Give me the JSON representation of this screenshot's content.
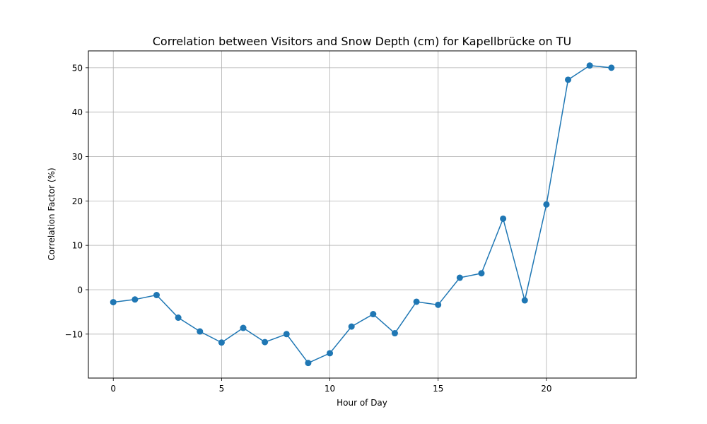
{
  "chart_data": {
    "type": "line",
    "title": "Correlation between Visitors and Snow Depth (cm) for Kapellbrücke on TU",
    "xlabel": "Hour of Day",
    "ylabel": "Correlation Factor (%)",
    "xlim": [
      -1.15,
      24.15
    ],
    "ylim": [
      -19.9,
      53.8
    ],
    "x_ticks": [
      0,
      5,
      10,
      15,
      20
    ],
    "y_ticks": [
      -10,
      0,
      10,
      20,
      30,
      40,
      50
    ],
    "grid": true,
    "series": [
      {
        "color": "#1f77b4",
        "marker": "circle",
        "x": [
          0,
          1,
          2,
          3,
          4,
          5,
          6,
          7,
          8,
          9,
          10,
          11,
          12,
          13,
          14,
          15,
          16,
          17,
          18,
          19,
          20,
          21,
          22,
          23
        ],
        "y": [
          -2.8,
          -2.2,
          -1.2,
          -6.3,
          -9.4,
          -11.9,
          -8.6,
          -11.8,
          -10.0,
          -16.5,
          -14.3,
          -8.3,
          -5.5,
          -9.8,
          -2.7,
          -3.4,
          2.7,
          3.7,
          16.0,
          -2.4,
          19.2,
          47.3,
          50.5,
          50.0
        ]
      }
    ]
  }
}
